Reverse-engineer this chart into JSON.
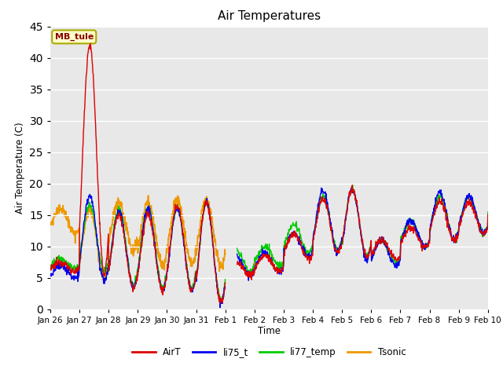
{
  "title": "Air Temperatures",
  "ylabel": "Air Temperature (C)",
  "xlabel": "Time",
  "annotation": "MB_tule",
  "ylim": [
    0,
    45
  ],
  "series_colors": {
    "AirT": "#dd0000",
    "li75_t": "#0000ee",
    "li77_temp": "#00cc00",
    "Tsonic": "#ee9900"
  },
  "bg_color": "#ffffff",
  "plot_bg": "#e8e8e8",
  "x_tick_labels": [
    "Jan 26",
    "Jan 27",
    "Jan 28",
    "Jan 29",
    "Jan 30",
    "Jan 31",
    "Feb 1",
    "Feb 2",
    "Feb 3",
    "Feb 4",
    "Feb 5",
    "Feb 6",
    "Feb 7",
    "Feb 8",
    "Feb 9",
    "Feb 10"
  ],
  "yticks": [
    0,
    5,
    10,
    15,
    20,
    25,
    30,
    35,
    40,
    45
  ],
  "n_points": 1440,
  "days": 15
}
